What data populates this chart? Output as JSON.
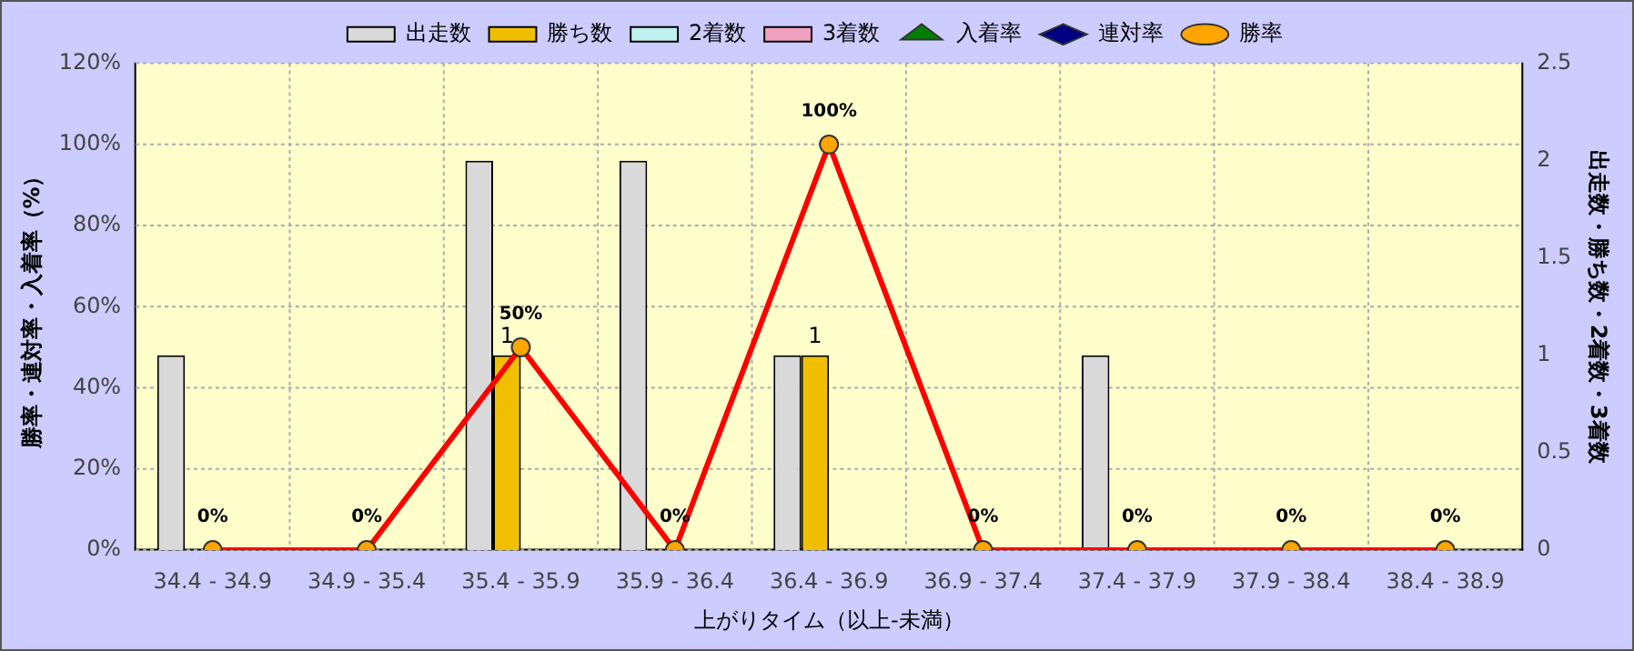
{
  "chart_data": {
    "type": "bar",
    "xlabel": "上がりタイム（以上-未満）",
    "ylabel": "勝率・連対率・入着率（%）",
    "y2label": "出走数・勝ち数・2着数・3着数",
    "categories": [
      "34.4 - 34.9",
      "34.9 - 35.4",
      "35.4 - 35.9",
      "35.9 - 36.4",
      "36.4 - 36.9",
      "36.9 - 37.4",
      "37.4 - 37.9",
      "37.9 - 38.4",
      "38.4 - 38.9"
    ],
    "series": [
      {
        "name": "出走数",
        "axis": "y2",
        "color": "#d9d9d9",
        "values": [
          1,
          0,
          2,
          2,
          1,
          0,
          1,
          0,
          0
        ]
      },
      {
        "name": "勝ち数",
        "axis": "y2",
        "color": "#f0c000",
        "values": [
          0,
          0,
          1,
          0,
          1,
          0,
          0,
          0,
          0
        ],
        "value_labels": [
          null,
          null,
          "1",
          null,
          "1",
          null,
          null,
          null,
          null
        ]
      },
      {
        "name": "2着数",
        "axis": "y2",
        "color": "#c0f0f0",
        "values": [
          0,
          0,
          0,
          0,
          0,
          0,
          0,
          0,
          0
        ]
      },
      {
        "name": "3着数",
        "axis": "y2",
        "color": "#f0a0c0",
        "values": [
          0,
          0,
          0,
          0,
          0,
          0,
          0,
          0,
          0
        ]
      },
      {
        "name": "入着率",
        "type": "line",
        "color": "#008000",
        "marker": "triangle",
        "values": [
          null,
          null,
          null,
          null,
          null,
          null,
          null,
          null,
          null
        ]
      },
      {
        "name": "連対率",
        "type": "line",
        "color": "#000080",
        "marker": "diamond",
        "values": [
          null,
          null,
          null,
          null,
          null,
          null,
          null,
          null,
          null
        ]
      },
      {
        "name": "勝率",
        "type": "line",
        "color": "#ff0000",
        "marker": "circle",
        "values": [
          0,
          0,
          50,
          0,
          100,
          0,
          0,
          0,
          0
        ],
        "value_labels": [
          "0%",
          "0%",
          "50%",
          "0%",
          "100%",
          "0%",
          "0%",
          "0%",
          "0%"
        ]
      }
    ],
    "ylim": [
      0,
      120
    ],
    "yticks": [
      {
        "value": 0,
        "label": "0%"
      },
      {
        "value": 20,
        "label": "20%"
      },
      {
        "value": 40,
        "label": "40%"
      },
      {
        "value": 60,
        "label": "60%"
      },
      {
        "value": 80,
        "label": "80%"
      },
      {
        "value": 100,
        "label": "100%"
      },
      {
        "value": 120,
        "label": "120%"
      }
    ],
    "y2lim": [
      0,
      2.5
    ],
    "y2ticks": [
      0,
      0.5,
      1,
      1.5,
      2,
      2.5
    ],
    "grid": true,
    "legend": "top"
  }
}
